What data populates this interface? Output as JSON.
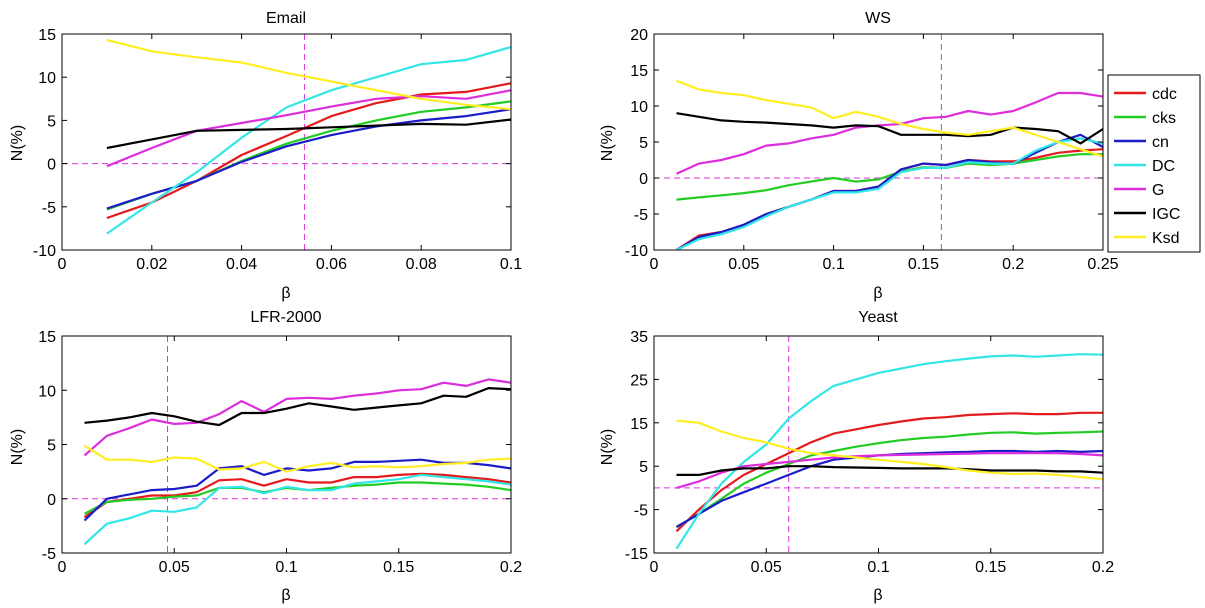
{
  "colors": {
    "cdc": "#e41a1c",
    "cks": "#22cc22",
    "cn": "#1c1cc8",
    "DC": "#33e6e6",
    "G": "#dd2ddd",
    "IGC": "#000000",
    "Ksd": "#ffee22",
    "ref": "#dd33dd"
  },
  "legend": [
    "cdc",
    "cks",
    "cn",
    "DC",
    "G",
    "IGC",
    "Ksd"
  ],
  "chart_data": [
    {
      "type": "line",
      "title": "Email",
      "xlabel": "β",
      "ylabel": "N(%)",
      "xlim": [
        0,
        0.1
      ],
      "ylim": [
        -10,
        15
      ],
      "xticks": [
        0,
        0.02,
        0.04,
        0.06,
        0.08,
        0.1
      ],
      "xtick_labels": [
        "0",
        "0.02",
        "0.04",
        "0.06",
        "0.08",
        "0.1"
      ],
      "yticks": [
        -10,
        -5,
        0,
        5,
        10,
        15
      ],
      "ytick_labels": [
        "-10",
        "-5",
        "0",
        "5",
        "10",
        "15"
      ],
      "vline": 0.054,
      "hline": 0,
      "x": [
        0.01,
        0.02,
        0.03,
        0.04,
        0.05,
        0.06,
        0.07,
        0.08,
        0.09,
        0.1
      ],
      "series": [
        {
          "name": "cdc",
          "values": [
            -6.3,
            -4.5,
            -2.0,
            1.0,
            3.2,
            5.5,
            7.0,
            8.0,
            8.3,
            9.3
          ]
        },
        {
          "name": "cks",
          "values": [
            -5.3,
            -3.5,
            -2.0,
            0.3,
            2.3,
            3.8,
            5.0,
            6.0,
            6.5,
            7.2
          ]
        },
        {
          "name": "cn",
          "values": [
            -5.2,
            -3.5,
            -2.0,
            0.2,
            2.0,
            3.3,
            4.3,
            5.0,
            5.5,
            6.3
          ]
        },
        {
          "name": "DC",
          "values": [
            -8.1,
            -4.5,
            -1.0,
            3.0,
            6.5,
            8.5,
            10.0,
            11.5,
            12.0,
            13.5
          ]
        },
        {
          "name": "G",
          "values": [
            -0.3,
            1.8,
            3.8,
            4.7,
            5.6,
            6.6,
            7.5,
            7.8,
            7.5,
            8.5
          ]
        },
        {
          "name": "IGC",
          "values": [
            1.8,
            2.8,
            3.8,
            3.9,
            4.0,
            4.2,
            4.4,
            4.6,
            4.5,
            5.1
          ]
        },
        {
          "name": "Ksd",
          "values": [
            14.3,
            13.0,
            12.3,
            11.7,
            10.5,
            9.5,
            8.5,
            7.5,
            6.8,
            6.3
          ]
        }
      ]
    },
    {
      "type": "line",
      "title": "WS",
      "xlabel": "β",
      "ylabel": "N(%)",
      "xlim": [
        0,
        0.25
      ],
      "ylim": [
        -10,
        20
      ],
      "xticks": [
        0,
        0.05,
        0.1,
        0.15,
        0.2,
        0.25
      ],
      "xtick_labels": [
        "0",
        "0.05",
        "0.1",
        "0.15",
        "0.2",
        "0.25"
      ],
      "yticks": [
        -10,
        -5,
        0,
        5,
        10,
        15,
        20
      ],
      "ytick_labels": [
        "-10",
        "-5",
        "0",
        "5",
        "10",
        "15",
        "20"
      ],
      "vline": 0.16,
      "hline": 0,
      "x": [
        0.0125,
        0.025,
        0.0375,
        0.05,
        0.0625,
        0.075,
        0.0875,
        0.1,
        0.1125,
        0.125,
        0.1375,
        0.15,
        0.1625,
        0.175,
        0.1875,
        0.2,
        0.2125,
        0.225,
        0.2375,
        0.25
      ],
      "series": [
        {
          "name": "cdc",
          "values": [
            -10,
            -8.0,
            -7.5,
            -6.5,
            -5.0,
            -4.0,
            -3.0,
            -1.8,
            -1.8,
            -1.2,
            1.2,
            2.0,
            1.8,
            2.5,
            2.3,
            2.3,
            2.8,
            3.5,
            3.8,
            4.0
          ]
        },
        {
          "name": "cks",
          "values": [
            -3.0,
            -2.7,
            -2.4,
            -2.1,
            -1.7,
            -1.0,
            -0.5,
            0.0,
            -0.5,
            -0.2,
            0.9,
            1.5,
            1.4,
            2.0,
            1.8,
            2.0,
            2.5,
            3.0,
            3.3,
            3.3
          ]
        },
        {
          "name": "cn",
          "values": [
            -10,
            -8.2,
            -7.5,
            -6.5,
            -5.0,
            -4.0,
            -3.0,
            -1.8,
            -1.8,
            -1.2,
            1.2,
            2.0,
            1.8,
            2.5,
            2.2,
            2.0,
            3.5,
            5.0,
            6.0,
            4.3
          ]
        },
        {
          "name": "DC",
          "values": [
            -10,
            -8.5,
            -7.8,
            -6.8,
            -5.3,
            -4.0,
            -3.0,
            -2.0,
            -2.0,
            -1.5,
            0.8,
            1.4,
            1.4,
            2.2,
            2.0,
            2.0,
            3.8,
            5.0,
            5.5,
            4.8
          ]
        },
        {
          "name": "G",
          "values": [
            0.6,
            2.0,
            2.5,
            3.3,
            4.5,
            4.8,
            5.5,
            6.0,
            7.0,
            7.3,
            7.5,
            8.3,
            8.5,
            9.3,
            8.8,
            9.3,
            10.5,
            11.8,
            11.8,
            11.3
          ]
        },
        {
          "name": "IGC",
          "values": [
            9.0,
            8.5,
            8.0,
            7.8,
            7.7,
            7.5,
            7.3,
            7.0,
            7.3,
            7.2,
            6.0,
            6.0,
            6.0,
            5.8,
            6.0,
            7.0,
            6.8,
            6.5,
            4.8,
            6.8
          ]
        },
        {
          "name": "Ksd",
          "values": [
            13.5,
            12.3,
            11.8,
            11.5,
            10.8,
            10.3,
            9.8,
            8.3,
            9.2,
            8.5,
            7.5,
            6.8,
            6.3,
            6.0,
            6.5,
            7.0,
            6.0,
            5.0,
            4.0,
            3.0
          ]
        }
      ]
    },
    {
      "type": "line",
      "title": "LFR-2000",
      "xlabel": "β",
      "ylabel": "N(%)",
      "xlim": [
        0,
        0.2
      ],
      "ylim": [
        -5,
        15
      ],
      "xticks": [
        0,
        0.05,
        0.1,
        0.15,
        0.2
      ],
      "xtick_labels": [
        "0",
        "0.05",
        "0.1",
        "0.15",
        "0.2"
      ],
      "yticks": [
        -5,
        0,
        5,
        10,
        15
      ],
      "ytick_labels": [
        "-5",
        "0",
        "5",
        "10",
        "15"
      ],
      "vline": 0.047,
      "hline": 0,
      "x": [
        0.01,
        0.02,
        0.03,
        0.04,
        0.05,
        0.06,
        0.07,
        0.08,
        0.09,
        0.1,
        0.11,
        0.12,
        0.13,
        0.14,
        0.15,
        0.16,
        0.17,
        0.18,
        0.19,
        0.2
      ],
      "series": [
        {
          "name": "cdc",
          "values": [
            -1.7,
            -0.3,
            0.0,
            0.3,
            0.3,
            0.6,
            1.7,
            1.8,
            1.2,
            1.8,
            1.5,
            1.5,
            2.0,
            2.0,
            2.2,
            2.3,
            2.2,
            2.0,
            1.8,
            1.5
          ]
        },
        {
          "name": "cks",
          "values": [
            -1.4,
            -0.3,
            -0.1,
            0.0,
            0.2,
            0.3,
            1.0,
            1.0,
            0.6,
            1.0,
            0.8,
            1.0,
            1.2,
            1.3,
            1.5,
            1.5,
            1.4,
            1.3,
            1.1,
            0.8
          ]
        },
        {
          "name": "cn",
          "values": [
            -2.0,
            0.0,
            0.4,
            0.8,
            0.9,
            1.2,
            2.8,
            3.0,
            2.2,
            2.8,
            2.6,
            2.8,
            3.4,
            3.4,
            3.5,
            3.6,
            3.3,
            3.3,
            3.1,
            2.8
          ]
        },
        {
          "name": "DC",
          "values": [
            -4.2,
            -2.3,
            -1.8,
            -1.1,
            -1.2,
            -0.8,
            1.0,
            1.1,
            0.5,
            1.1,
            0.8,
            0.8,
            1.4,
            1.6,
            1.8,
            2.2,
            2.0,
            1.8,
            1.6,
            1.3
          ]
        },
        {
          "name": "G",
          "values": [
            4.0,
            5.8,
            6.5,
            7.3,
            6.9,
            7.0,
            7.8,
            9.0,
            8.0,
            9.2,
            9.3,
            9.2,
            9.5,
            9.7,
            10.0,
            10.1,
            10.7,
            10.4,
            11.0,
            10.7
          ]
        },
        {
          "name": "IGC",
          "values": [
            7.0,
            7.2,
            7.5,
            7.9,
            7.6,
            7.1,
            6.8,
            7.9,
            7.9,
            8.3,
            8.8,
            8.5,
            8.2,
            8.4,
            8.6,
            8.8,
            9.5,
            9.4,
            10.2,
            10.1
          ]
        },
        {
          "name": "Ksd",
          "values": [
            4.9,
            3.6,
            3.6,
            3.4,
            3.8,
            3.7,
            2.7,
            2.8,
            3.4,
            2.5,
            3.0,
            3.3,
            2.9,
            3.0,
            2.9,
            3.0,
            3.2,
            3.3,
            3.6,
            3.7
          ]
        }
      ]
    },
    {
      "type": "line",
      "title": "Yeast",
      "xlabel": "β",
      "ylabel": "N(%)",
      "xlim": [
        0,
        0.2
      ],
      "ylim": [
        -15,
        35
      ],
      "xticks": [
        0,
        0.05,
        0.1,
        0.15,
        0.2
      ],
      "xtick_labels": [
        "0",
        "0.05",
        "0.1",
        "0.15",
        "0.2"
      ],
      "yticks": [
        -15,
        -5,
        5,
        15,
        25,
        35
      ],
      "ytick_labels": [
        "-15",
        "-5",
        "5",
        "15",
        "25",
        "35"
      ],
      "vline": 0.06,
      "hline": 0,
      "x": [
        0.01,
        0.02,
        0.03,
        0.04,
        0.05,
        0.06,
        0.07,
        0.08,
        0.09,
        0.1,
        0.11,
        0.12,
        0.13,
        0.14,
        0.15,
        0.16,
        0.17,
        0.18,
        0.19,
        0.2
      ],
      "series": [
        {
          "name": "cdc",
          "values": [
            -10,
            -5.0,
            -0.5,
            3.0,
            5.5,
            8.0,
            10.5,
            12.5,
            13.5,
            14.5,
            15.3,
            16.0,
            16.3,
            16.8,
            17.0,
            17.2,
            17.0,
            17.0,
            17.3,
            17.3
          ]
        },
        {
          "name": "cks",
          "values": [
            -9.0,
            -6.0,
            -2.5,
            1.0,
            3.5,
            5.5,
            7.5,
            8.5,
            9.5,
            10.3,
            11.0,
            11.5,
            11.8,
            12.3,
            12.7,
            12.8,
            12.5,
            12.7,
            12.8,
            13.0
          ]
        },
        {
          "name": "cn",
          "values": [
            -9.0,
            -6.0,
            -3.0,
            -1.0,
            1.0,
            3.0,
            5.0,
            6.5,
            7.0,
            7.5,
            7.8,
            8.0,
            8.2,
            8.3,
            8.5,
            8.5,
            8.3,
            8.5,
            8.3,
            8.5
          ]
        },
        {
          "name": "DC",
          "values": [
            -14,
            -6.0,
            1.0,
            6.0,
            10.0,
            16.0,
            20.0,
            23.5,
            25.0,
            26.5,
            27.5,
            28.5,
            29.2,
            29.8,
            30.3,
            30.5,
            30.2,
            30.5,
            30.8,
            30.7
          ]
        },
        {
          "name": "G",
          "values": [
            0.0,
            1.5,
            3.5,
            5.0,
            5.5,
            6.0,
            6.5,
            7.0,
            7.3,
            7.5,
            7.6,
            7.7,
            7.8,
            7.9,
            8.0,
            8.0,
            8.0,
            8.0,
            7.8,
            7.5
          ]
        },
        {
          "name": "IGC",
          "values": [
            3.0,
            3.0,
            4.0,
            4.5,
            4.5,
            5.0,
            5.0,
            4.8,
            4.7,
            4.6,
            4.5,
            4.5,
            4.5,
            4.3,
            4.0,
            4.0,
            4.0,
            3.8,
            3.8,
            3.5
          ]
        },
        {
          "name": "Ksd",
          "values": [
            15.5,
            15.0,
            13.0,
            11.5,
            10.5,
            9.0,
            8.0,
            7.5,
            7.0,
            6.5,
            6.0,
            5.5,
            4.8,
            4.0,
            3.5,
            3.2,
            3.3,
            3.0,
            2.5,
            2.0
          ]
        }
      ]
    }
  ]
}
